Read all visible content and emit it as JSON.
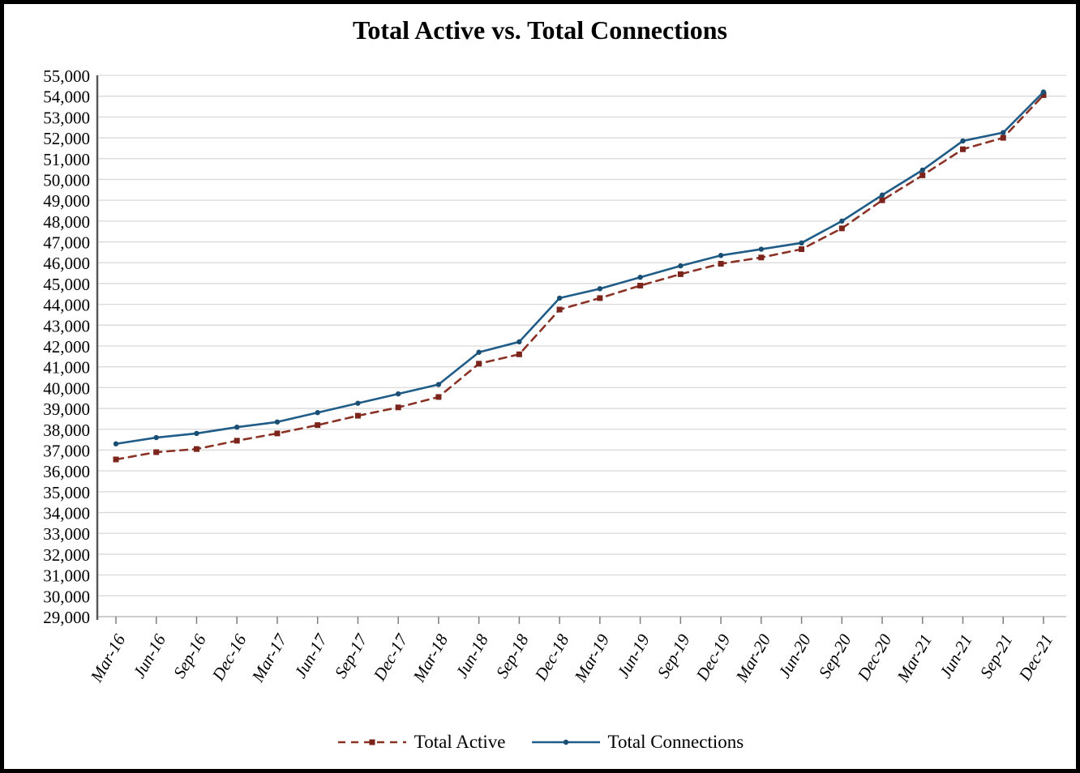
{
  "chart_data": {
    "type": "line",
    "title": "Total Active vs. Total Connections",
    "xlabel": "",
    "ylabel": "",
    "categories": [
      "Mar-16",
      "Jun-16",
      "Sep-16",
      "Dec-16",
      "Mar-17",
      "Jun-17",
      "Sep-17",
      "Dec-17",
      "Mar-18",
      "Jun-18",
      "Sep-18",
      "Dec-18",
      "Mar-19",
      "Jun-19",
      "Sep-19",
      "Dec-19",
      "Mar-20",
      "Jun-20",
      "Sep-20",
      "Dec-20",
      "Mar-21",
      "Jun-21",
      "Sep-21",
      "Dec-21"
    ],
    "series": [
      {
        "name": "Total Active",
        "style": "dashed",
        "marker": "square",
        "color": "#8B3226",
        "marker_color": "#7A241C",
        "values": [
          36550,
          36900,
          37050,
          37450,
          37800,
          38200,
          38650,
          39050,
          39550,
          41150,
          41600,
          43750,
          44300,
          44900,
          45450,
          45950,
          46250,
          46650,
          47650,
          49000,
          50200,
          51450,
          52000,
          54050
        ]
      },
      {
        "name": "Total Connections",
        "style": "solid",
        "marker": "circle",
        "color": "#1F5C87",
        "marker_color": "#1A4E73",
        "values": [
          37300,
          37600,
          37800,
          38100,
          38350,
          38800,
          39250,
          39700,
          40150,
          41700,
          42200,
          44300,
          44750,
          45300,
          45850,
          46350,
          46650,
          46950,
          48000,
          49250,
          50450,
          51850,
          52250,
          54200
        ]
      }
    ],
    "ylim": [
      29000,
      55000
    ],
    "y_ticks": [
      "29,000",
      "30,000",
      "31,000",
      "32,000",
      "33,000",
      "34,000",
      "35,000",
      "36,000",
      "37,000",
      "38,000",
      "39,000",
      "40,000",
      "41,000",
      "42,000",
      "43,000",
      "44,000",
      "45,000",
      "46,000",
      "47,000",
      "48,000",
      "49,000",
      "50,000",
      "51,000",
      "52,000",
      "53,000",
      "54,000",
      "55,000"
    ],
    "grid": "horizontal",
    "legend_position": "bottom",
    "colors": {
      "gridline": "#D9D9D9",
      "y_axis": "#595959",
      "x_axis": "#BFBFBF",
      "tick": "#7F7F7F",
      "background": "#FFFFFF",
      "frame_border": "#000000"
    }
  }
}
